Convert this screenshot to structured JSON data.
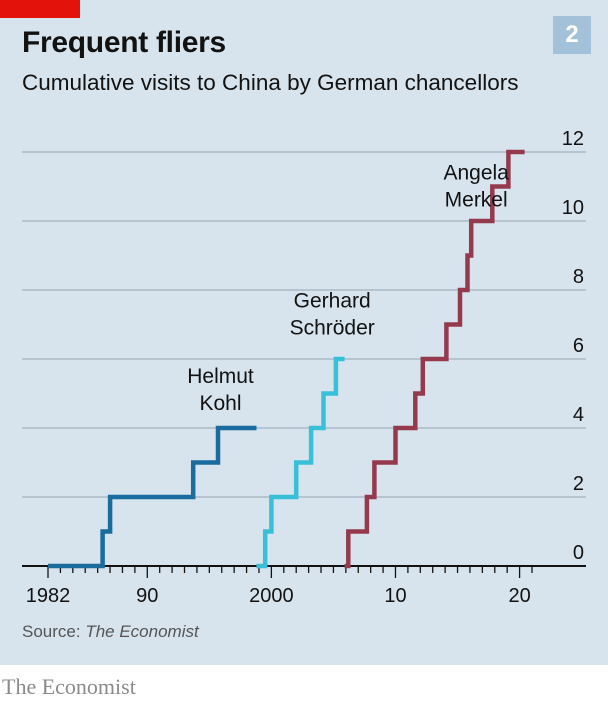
{
  "title": "Frequent fliers",
  "subtitle": "Cumulative visits to China by German chancellors",
  "badge": "2",
  "source_prefix": "Source:",
  "source_name": "The Economist",
  "brand": "The Economist",
  "colors": {
    "accent_red": "#e3120b",
    "background": "#d7e4ee",
    "badge_bg": "#a3c1d8",
    "kohl": "#1a6b9e",
    "schroeder": "#38c0d8",
    "merkel": "#953a4d"
  },
  "chart_data": {
    "type": "line",
    "step": true,
    "x_label": "",
    "y_label": "",
    "x_range": [
      1982,
      2021
    ],
    "y_range": [
      0,
      12
    ],
    "y_axis_position": "right",
    "grid": "horizontal",
    "x_ticks": [
      1982,
      1990,
      2000,
      2010,
      2020
    ],
    "x_tick_labels": [
      "1982",
      "90",
      "2000",
      "10",
      "20"
    ],
    "y_ticks": [
      0,
      2,
      4,
      6,
      8,
      10,
      12
    ],
    "y_tick_labels": [
      "0",
      "2",
      "4",
      "6",
      "8",
      "10",
      "12"
    ],
    "series": [
      {
        "name": "Helmut Kohl",
        "label_lines": [
          "Helmut",
          "Kohl"
        ],
        "color": "#1a6b9e",
        "points": [
          [
            1982,
            0
          ],
          [
            1986.4,
            0
          ],
          [
            1986.4,
            1
          ],
          [
            1987,
            1
          ],
          [
            1987,
            2
          ],
          [
            1993.7,
            2
          ],
          [
            1993.7,
            3
          ],
          [
            1995.7,
            3
          ],
          [
            1995.7,
            4
          ],
          [
            1998.8,
            4
          ]
        ]
      },
      {
        "name": "Gerhard Schröder",
        "label_lines": [
          "Gerhard",
          "Schröder"
        ],
        "color": "#38c0d8",
        "points": [
          [
            1998.8,
            0
          ],
          [
            1999.5,
            0
          ],
          [
            1999.5,
            1
          ],
          [
            2000,
            1
          ],
          [
            2000,
            2
          ],
          [
            2002,
            2
          ],
          [
            2002,
            3
          ],
          [
            2003.2,
            3
          ],
          [
            2003.2,
            4
          ],
          [
            2004.2,
            4
          ],
          [
            2004.2,
            5
          ],
          [
            2005.2,
            5
          ],
          [
            2005.2,
            6
          ],
          [
            2005.9,
            6
          ]
        ]
      },
      {
        "name": "Angela Merkel",
        "label_lines": [
          "Angela",
          "Merkel"
        ],
        "color": "#953a4d",
        "points": [
          [
            2005.9,
            0
          ],
          [
            2006.2,
            0
          ],
          [
            2006.2,
            1
          ],
          [
            2007.7,
            1
          ],
          [
            2007.7,
            2
          ],
          [
            2008.3,
            2
          ],
          [
            2008.3,
            3
          ],
          [
            2010,
            3
          ],
          [
            2010,
            4
          ],
          [
            2011.6,
            4
          ],
          [
            2011.6,
            5
          ],
          [
            2012.2,
            5
          ],
          [
            2012.2,
            6
          ],
          [
            2014.1,
            6
          ],
          [
            2014.1,
            7
          ],
          [
            2015.2,
            7
          ],
          [
            2015.2,
            8
          ],
          [
            2015.8,
            8
          ],
          [
            2015.8,
            9
          ],
          [
            2016.1,
            9
          ],
          [
            2016.1,
            10
          ],
          [
            2017.8,
            10
          ],
          [
            2017.8,
            11
          ],
          [
            2019.1,
            11
          ],
          [
            2019.1,
            12
          ],
          [
            2020.4,
            12
          ]
        ]
      }
    ]
  }
}
